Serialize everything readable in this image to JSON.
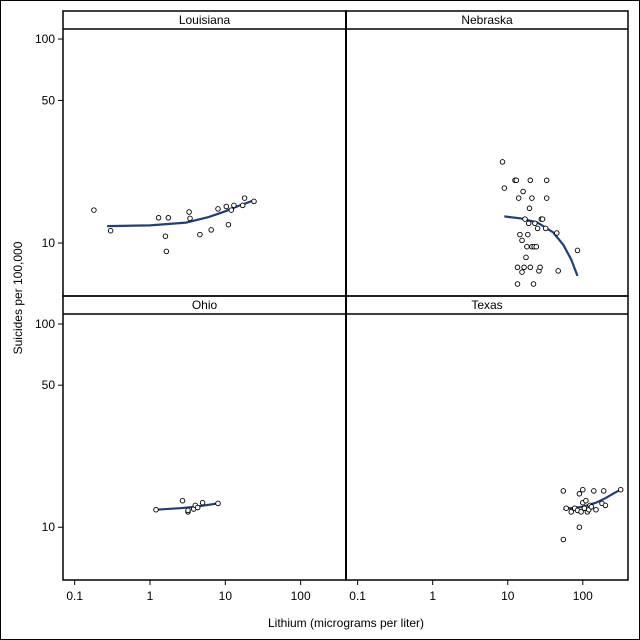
{
  "chart_data": {
    "type": "scatter",
    "xlabel": "Lithium (micrograms per liter)",
    "ylabel": "Suicides per 100,000",
    "x_scale": "log",
    "y_scale": "log",
    "x_ticks": [
      0.1,
      1,
      10,
      100
    ],
    "x_tick_labels": [
      "0.1",
      "1",
      "10",
      "100"
    ],
    "y_ticks": [
      10,
      50,
      100
    ],
    "y_tick_labels": [
      "10",
      "50",
      "100"
    ],
    "xlim": [
      0.07,
      400
    ],
    "ylim": [
      5.5,
      112
    ],
    "colors": {
      "points": "#000000",
      "fit": "#1f3f7a",
      "frame": "#000000"
    },
    "panels": [
      {
        "title": "Louisiana",
        "points": [
          [
            0.18,
            14.5
          ],
          [
            0.3,
            11.5
          ],
          [
            1.3,
            13.3
          ],
          [
            1.6,
            10.8
          ],
          [
            1.65,
            9.1
          ],
          [
            1.75,
            13.3
          ],
          [
            3.3,
            14.2
          ],
          [
            3.4,
            13.2
          ],
          [
            4.6,
            11.0
          ],
          [
            6.5,
            11.6
          ],
          [
            8.0,
            14.7
          ],
          [
            10.3,
            15.1
          ],
          [
            11.0,
            12.3
          ],
          [
            12.0,
            14.5
          ],
          [
            13.0,
            15.3
          ],
          [
            17.0,
            15.3
          ],
          [
            18.0,
            16.6
          ],
          [
            24.0,
            16.0
          ]
        ],
        "fit": [
          [
            0.27,
            12.1
          ],
          [
            1.0,
            12.2
          ],
          [
            3.0,
            12.6
          ],
          [
            6.0,
            13.4
          ],
          [
            10.0,
            14.3
          ],
          [
            15.0,
            15.2
          ],
          [
            25.0,
            16.3
          ]
        ]
      },
      {
        "title": "Nebraska",
        "points": [
          [
            8.5,
            25.0
          ],
          [
            9.0,
            18.6
          ],
          [
            12.5,
            20.3
          ],
          [
            13.0,
            20.3
          ],
          [
            13.5,
            7.6
          ],
          [
            13.5,
            6.3
          ],
          [
            14.0,
            16.6
          ],
          [
            14.5,
            11.0
          ],
          [
            15.5,
            7.2
          ],
          [
            15.5,
            10.3
          ],
          [
            16.0,
            17.9
          ],
          [
            16.5,
            7.6
          ],
          [
            17.0,
            13.1
          ],
          [
            17.5,
            8.5
          ],
          [
            18.0,
            9.6
          ],
          [
            18.5,
            11.0
          ],
          [
            19.0,
            12.5
          ],
          [
            19.5,
            14.8
          ],
          [
            20.0,
            7.6
          ],
          [
            20.0,
            20.3
          ],
          [
            21.0,
            16.6
          ],
          [
            21.0,
            9.6
          ],
          [
            22.0,
            6.3
          ],
          [
            22.5,
            9.6
          ],
          [
            23.0,
            12.5
          ],
          [
            24.0,
            9.6
          ],
          [
            25.0,
            11.8
          ],
          [
            26.0,
            7.3
          ],
          [
            27.0,
            7.6
          ],
          [
            28.0,
            13.1
          ],
          [
            29.0,
            13.1
          ],
          [
            32.0,
            11.8
          ],
          [
            33.0,
            20.3
          ],
          [
            33.0,
            16.6
          ],
          [
            45.0,
            11.2
          ],
          [
            47.0,
            7.3
          ],
          [
            85.0,
            9.2
          ]
        ],
        "fit": [
          [
            9.0,
            13.5
          ],
          [
            15.0,
            13.2
          ],
          [
            25.0,
            12.6
          ],
          [
            40.0,
            11.3
          ],
          [
            55.0,
            9.8
          ],
          [
            70.0,
            8.3
          ],
          [
            85.0,
            6.9
          ]
        ]
      },
      {
        "title": "Ohio",
        "points": [
          [
            1.2,
            12.2
          ],
          [
            2.7,
            13.5
          ],
          [
            3.2,
            11.9
          ],
          [
            3.2,
            12.1
          ],
          [
            3.8,
            12.3
          ],
          [
            4.0,
            12.8
          ],
          [
            4.3,
            12.5
          ],
          [
            5.0,
            13.2
          ],
          [
            8.0,
            13.1
          ]
        ],
        "fit": [
          [
            1.2,
            12.2
          ],
          [
            2.5,
            12.4
          ],
          [
            4.0,
            12.6
          ],
          [
            6.0,
            12.9
          ],
          [
            8.0,
            13.1
          ]
        ]
      },
      {
        "title": "Texas",
        "points": [
          [
            55.0,
            15.1
          ],
          [
            55.0,
            8.7
          ],
          [
            60.0,
            12.4
          ],
          [
            70.0,
            11.9
          ],
          [
            78.0,
            12.4
          ],
          [
            85.0,
            12.1
          ],
          [
            90.0,
            10.0
          ],
          [
            90.0,
            14.6
          ],
          [
            95.0,
            11.9
          ],
          [
            100.0,
            15.3
          ],
          [
            100.0,
            13.2
          ],
          [
            105.0,
            12.4
          ],
          [
            110.0,
            13.5
          ],
          [
            115.0,
            11.9
          ],
          [
            120.0,
            12.2
          ],
          [
            125.0,
            12.8
          ],
          [
            130.0,
            12.6
          ],
          [
            140.0,
            15.1
          ],
          [
            150.0,
            12.2
          ],
          [
            180.0,
            13.1
          ],
          [
            190.0,
            15.1
          ],
          [
            200.0,
            12.8
          ],
          [
            320.0,
            15.3
          ]
        ],
        "fit": [
          [
            55.0,
            12.3
          ],
          [
            100.0,
            12.6
          ],
          [
            150.0,
            13.2
          ],
          [
            200.0,
            13.9
          ],
          [
            260.0,
            14.7
          ],
          [
            330.0,
            15.4
          ]
        ]
      }
    ]
  }
}
